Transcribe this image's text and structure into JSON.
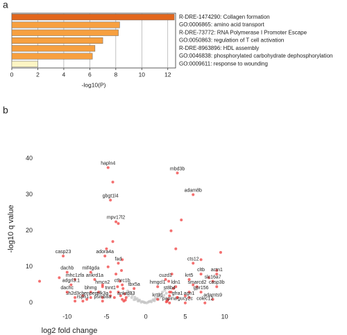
{
  "chart_data": [
    {
      "type": "barh",
      "panel_label": "a",
      "categories": [
        "R-DRE-1474290: Collagen formation",
        "GO:0006865: amino acid transport",
        "R-DRE-73772: RNA Polymerase I Promoter Escape",
        "GO:0050863: regulation of T cell activation",
        "R-DRE-8963896: HDL assembly",
        "GO:0046838: phosphorylated carbohydrate dephosphorylation",
        "GO:0009611: response to wounding"
      ],
      "values": [
        12.5,
        8.3,
        8.2,
        7.0,
        6.4,
        6.2,
        2.0
      ],
      "colors": [
        "#e2661c",
        "#f7a040",
        "#f7a040",
        "#f7a040",
        "#f7a040",
        "#f7a040",
        "#fdf5c4"
      ],
      "xlabel": "-log10(P)",
      "xlim": [
        0,
        12.6
      ],
      "xticks": [
        0,
        2,
        4,
        6,
        8,
        10,
        12
      ],
      "grid": true
    },
    {
      "type": "scatter",
      "panel_label": "b",
      "xlabel": "log2 fold change",
      "ylabel": "-log10 q value",
      "xlim": [
        -15,
        11
      ],
      "xticks": [
        -10,
        -5,
        0,
        5,
        10
      ],
      "ylim": [
        -3.5,
        43
      ],
      "yticks": [
        0,
        10,
        20,
        30,
        40
      ],
      "series": [
        {
          "color": "#c4c4c4",
          "x": [
            -0.2,
            0.3,
            -0.5,
            0.6,
            -0.8,
            0.9,
            -1.1,
            1.2,
            -1.4,
            1.5,
            -1.7,
            1.8,
            -2,
            2.1,
            -2.3,
            2.4,
            -0.3,
            0.4,
            -0.9,
            1,
            -1.3,
            1.4,
            -1.8,
            1.9,
            -2.2,
            2.3,
            -0.6,
            0.7,
            -1.5,
            1.6,
            -2.5,
            2.6,
            -1,
            1.1,
            0.1,
            -0.1
          ],
          "values": [
            0.1,
            0.2,
            0.4,
            0.5,
            0.8,
            0.9,
            1.2,
            1.3,
            1.6,
            1.8,
            2.2,
            2.3,
            2.8,
            3,
            3.3,
            3.5,
            0.3,
            0.4,
            0.6,
            0.7,
            1,
            1.1,
            1.5,
            1.6,
            2,
            2.1,
            0.2,
            0.3,
            0.9,
            1,
            2.5,
            2.7,
            0.5,
            0.6,
            0,
            0.1
          ]
        },
        {
          "color": "#f04040",
          "x": [
            -3,
            -3.2,
            -3.5,
            -2.8,
            -4,
            -2.9,
            -3.3,
            -3.8,
            -2.7,
            -4.5,
            -3.1,
            -5,
            -6,
            -7.5,
            -8,
            -9,
            -11,
            -13.5,
            -3,
            -4.2,
            -2.6,
            -3.6,
            -4.8,
            -5.5,
            2.8,
            3,
            3.2,
            2.7,
            3.5,
            4,
            2.9,
            3.3,
            5,
            6,
            7,
            9,
            9.5,
            2.6,
            4.5,
            3.8,
            5.5,
            8,
            -4.2,
            -3.5,
            3.2
          ],
          "values": [
            1,
            2,
            3,
            0.5,
            1.5,
            4,
            6,
            8,
            2.5,
            2,
            9,
            15,
            3,
            1,
            2,
            0.5,
            7,
            6,
            12,
            17,
            0.8,
            4.5,
            10,
            5,
            1,
            2,
            3,
            0.5,
            4,
            1.5,
            6,
            8,
            2,
            5,
            12,
            9,
            14,
            0.3,
            23,
            15,
            3,
            7,
            33.5,
            22,
            20
          ]
        },
        {
          "color": "#f04040",
          "label_color": "#111111",
          "labels": [
            "hapln4",
            "gbgt1l4",
            "mpv17l2",
            "adora4a",
            "fad",
            "mif4gda",
            "mhc1zfa",
            "ankrd1a",
            "hmcn2",
            "cthrc1b",
            "tbx5a",
            "bhmg",
            "tnnt1",
            "sh2d3cb",
            "enpep",
            "plk3a",
            "ankrd33",
            "rsph1",
            "psmb8a",
            "mbd3b",
            "adam8b",
            "cts12",
            "cltb",
            "actn1",
            "cuzd1",
            "krt5",
            "slc16a7",
            "hmgcl1",
            "ldn1",
            "smarcd2",
            "casp3b",
            "st8b4",
            "gpr156",
            "krt91",
            "gfra1",
            "agn1",
            "adamts9",
            "papina",
            "gucy2c",
            "colec12"
          ],
          "x": [
            -4.8,
            -4.5,
            -3.8,
            -5.2,
            -3.5,
            -7,
            -9,
            -6.5,
            -5.5,
            -3,
            -1.5,
            -7,
            -4.5,
            -9,
            -7,
            -5.5,
            -2.5,
            -8,
            -5.5,
            4,
            6,
            6,
            7,
            9,
            2.5,
            5.5,
            8.5,
            1.5,
            3.8,
            6.5,
            9,
            3,
            7,
            1.5,
            4,
            5.5,
            8.5,
            3,
            5,
            7.5
          ],
          "values": [
            37.5,
            28.5,
            22.5,
            13,
            11,
            8.5,
            6.5,
            6.5,
            4.5,
            5,
            4,
            3,
            3,
            1.5,
            1.5,
            1.5,
            1.5,
            0.5,
            0.5,
            36,
            30,
            11,
            8,
            8,
            6.5,
            6.5,
            6,
            4.5,
            4.5,
            4.5,
            4.5,
            3,
            3,
            1,
            1.5,
            1.5,
            1,
            0,
            0,
            0
          ]
        },
        {
          "color": "#f04040",
          "label_color": "#e8262a",
          "labels": [
            "casp23",
            "dachb",
            "adgrl3.1",
            "dachc"
          ],
          "x": [
            -10.5,
            -10,
            -9.5,
            -10
          ],
          "values": [
            13,
            8.5,
            5,
            3
          ]
        }
      ]
    }
  ]
}
